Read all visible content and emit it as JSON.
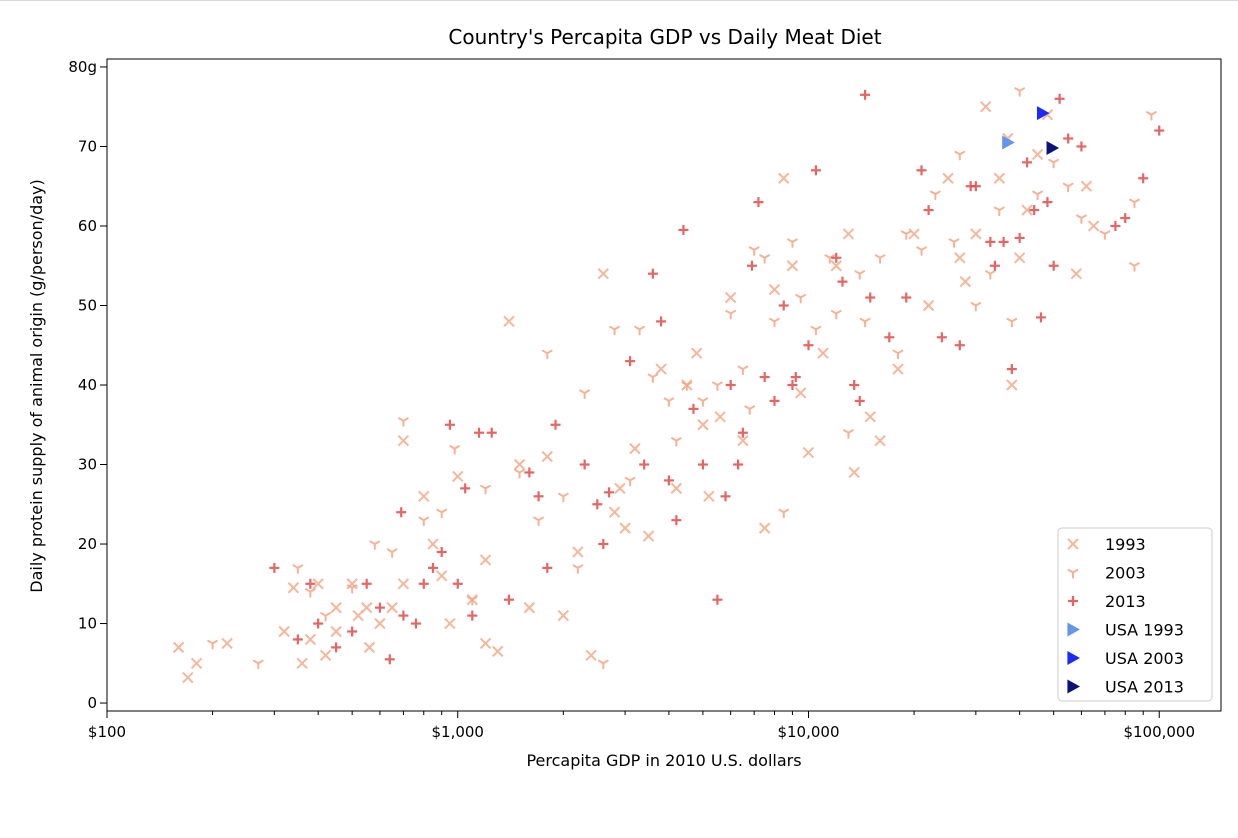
{
  "chart_data": {
    "type": "scatter",
    "title": "Country's Percapita GDP vs Daily Meat Diet",
    "xlabel": "Percapita GDP in 2010 U.S. dollars",
    "ylabel": "Daily protein supply of animal origin (g/person/day)",
    "xscale": "log",
    "xlim": [
      100,
      150000
    ],
    "ylim": [
      -1,
      81
    ],
    "xticks": [
      {
        "value": 100,
        "label": "$100"
      },
      {
        "value": 1000,
        "label": "$1,000"
      },
      {
        "value": 10000,
        "label": "$10,000"
      },
      {
        "value": 100000,
        "label": "$100,000"
      }
    ],
    "yticks": [
      {
        "value": 0,
        "label": "0"
      },
      {
        "value": 10,
        "label": "10"
      },
      {
        "value": 20,
        "label": "20"
      },
      {
        "value": 30,
        "label": "30"
      },
      {
        "value": 40,
        "label": "40"
      },
      {
        "value": 50,
        "label": "50"
      },
      {
        "value": 60,
        "label": "60"
      },
      {
        "value": 70,
        "label": "70"
      },
      {
        "value": 80,
        "label": "80g"
      }
    ],
    "grid": false,
    "legend_position": "bottom-right",
    "series": [
      {
        "name": "1993",
        "marker": "x",
        "color": "#f4a582",
        "points": [
          [
            160,
            7
          ],
          [
            170,
            3.2
          ],
          [
            180,
            5
          ],
          [
            220,
            7.5
          ],
          [
            320,
            9
          ],
          [
            340,
            14.5
          ],
          [
            360,
            5
          ],
          [
            380,
            8
          ],
          [
            400,
            15
          ],
          [
            420,
            6
          ],
          [
            450,
            12
          ],
          [
            500,
            15
          ],
          [
            520,
            11
          ],
          [
            560,
            7
          ],
          [
            600,
            10
          ],
          [
            650,
            12
          ],
          [
            700,
            33
          ],
          [
            800,
            26
          ],
          [
            850,
            20
          ],
          [
            900,
            16
          ],
          [
            950,
            10
          ],
          [
            1000,
            28.5
          ],
          [
            1100,
            13
          ],
          [
            1200,
            7.5
          ],
          [
            1300,
            6.5
          ],
          [
            1400,
            48
          ],
          [
            1500,
            30
          ],
          [
            1600,
            12
          ],
          [
            1800,
            31
          ],
          [
            2000,
            11
          ],
          [
            2200,
            19
          ],
          [
            2400,
            6
          ],
          [
            2600,
            54
          ],
          [
            2900,
            27
          ],
          [
            3200,
            32
          ],
          [
            3500,
            21
          ],
          [
            3800,
            42
          ],
          [
            4200,
            27
          ],
          [
            4500,
            40
          ],
          [
            4800,
            44
          ],
          [
            5000,
            35
          ],
          [
            5600,
            36
          ],
          [
            6000,
            51
          ],
          [
            6500,
            33
          ],
          [
            7500,
            22
          ],
          [
            8000,
            52
          ],
          [
            8500,
            66
          ],
          [
            9000,
            55
          ],
          [
            10000,
            31.5
          ],
          [
            11000,
            44
          ],
          [
            12000,
            55
          ],
          [
            13000,
            59
          ],
          [
            13500,
            29
          ],
          [
            15000,
            36
          ],
          [
            16000,
            33
          ],
          [
            20000,
            59
          ],
          [
            22000,
            50
          ],
          [
            25000,
            66
          ],
          [
            28000,
            53
          ],
          [
            30000,
            59
          ],
          [
            32000,
            75
          ],
          [
            35000,
            66
          ],
          [
            37000,
            71
          ],
          [
            38000,
            40
          ],
          [
            40000,
            56
          ],
          [
            42000,
            62
          ],
          [
            45000,
            69
          ],
          [
            48000,
            74
          ],
          [
            58000,
            54
          ],
          [
            62000,
            65
          ],
          [
            65000,
            60
          ],
          [
            450,
            9
          ],
          [
            550,
            12
          ],
          [
            700,
            15
          ],
          [
            1200,
            18
          ],
          [
            2800,
            24
          ],
          [
            3000,
            22
          ],
          [
            5200,
            26
          ],
          [
            9500,
            39
          ],
          [
            18000,
            42
          ],
          [
            27000,
            56
          ]
        ]
      },
      {
        "name": "2003",
        "marker": "tri_down",
        "color": "#f4a582",
        "points": [
          [
            200,
            7.5
          ],
          [
            270,
            5
          ],
          [
            350,
            17
          ],
          [
            380,
            14
          ],
          [
            420,
            11
          ],
          [
            500,
            14.5
          ],
          [
            580,
            20
          ],
          [
            650,
            19
          ],
          [
            700,
            35.5
          ],
          [
            800,
            23
          ],
          [
            900,
            24
          ],
          [
            980,
            32
          ],
          [
            1200,
            27
          ],
          [
            1500,
            29
          ],
          [
            1700,
            23
          ],
          [
            1800,
            44
          ],
          [
            2000,
            26
          ],
          [
            2300,
            39
          ],
          [
            2600,
            5
          ],
          [
            2800,
            47
          ],
          [
            3300,
            47
          ],
          [
            3600,
            41
          ],
          [
            4000,
            38
          ],
          [
            4500,
            40
          ],
          [
            5000,
            38
          ],
          [
            5500,
            40
          ],
          [
            6000,
            49
          ],
          [
            6500,
            42
          ],
          [
            7000,
            57
          ],
          [
            7500,
            56
          ],
          [
            8000,
            48
          ],
          [
            9000,
            58
          ],
          [
            9500,
            51
          ],
          [
            10500,
            47
          ],
          [
            11500,
            56
          ],
          [
            12000,
            49
          ],
          [
            13000,
            34
          ],
          [
            14000,
            54
          ],
          [
            16000,
            56
          ],
          [
            18000,
            44
          ],
          [
            19000,
            59
          ],
          [
            21000,
            57
          ],
          [
            23000,
            64
          ],
          [
            27000,
            69
          ],
          [
            30000,
            50
          ],
          [
            33000,
            54
          ],
          [
            35000,
            62
          ],
          [
            38000,
            48
          ],
          [
            40000,
            77
          ],
          [
            45000,
            64
          ],
          [
            50000,
            68
          ],
          [
            55000,
            65
          ],
          [
            60000,
            61
          ],
          [
            70000,
            59
          ],
          [
            85000,
            63
          ],
          [
            85000,
            55
          ],
          [
            95000,
            74
          ],
          [
            1100,
            13
          ],
          [
            2200,
            17
          ],
          [
            3100,
            28
          ],
          [
            4200,
            33
          ],
          [
            6800,
            37
          ],
          [
            8500,
            24
          ],
          [
            14500,
            48
          ],
          [
            26000,
            58
          ]
        ]
      },
      {
        "name": "2013",
        "marker": "plus",
        "color": "#e34a4a",
        "points": [
          [
            300,
            17
          ],
          [
            380,
            15
          ],
          [
            400,
            10
          ],
          [
            450,
            7
          ],
          [
            500,
            9
          ],
          [
            550,
            15
          ],
          [
            640,
            5.5
          ],
          [
            690,
            24
          ],
          [
            700,
            11
          ],
          [
            760,
            10
          ],
          [
            800,
            15
          ],
          [
            850,
            17
          ],
          [
            900,
            19
          ],
          [
            950,
            35
          ],
          [
            1000,
            15
          ],
          [
            1050,
            27
          ],
          [
            1150,
            34
          ],
          [
            1250,
            34
          ],
          [
            1400,
            13
          ],
          [
            1600,
            29
          ],
          [
            1700,
            26
          ],
          [
            1900,
            35
          ],
          [
            2300,
            30
          ],
          [
            2500,
            25
          ],
          [
            2700,
            26.5
          ],
          [
            3100,
            43
          ],
          [
            3400,
            30
          ],
          [
            3600,
            54
          ],
          [
            3800,
            48
          ],
          [
            4000,
            28
          ],
          [
            4400,
            59.5
          ],
          [
            4700,
            37
          ],
          [
            5000,
            30
          ],
          [
            5500,
            13
          ],
          [
            5800,
            26
          ],
          [
            6000,
            40
          ],
          [
            6300,
            30
          ],
          [
            6900,
            55
          ],
          [
            7200,
            63
          ],
          [
            7500,
            41
          ],
          [
            8000,
            38
          ],
          [
            8500,
            50
          ],
          [
            9000,
            40
          ],
          [
            10000,
            45
          ],
          [
            10500,
            67
          ],
          [
            12000,
            56
          ],
          [
            13500,
            40
          ],
          [
            14000,
            38
          ],
          [
            14500,
            76.5
          ],
          [
            15000,
            51
          ],
          [
            17000,
            46
          ],
          [
            19000,
            51
          ],
          [
            21000,
            67
          ],
          [
            22000,
            62
          ],
          [
            24000,
            46
          ],
          [
            27000,
            45
          ],
          [
            29000,
            65
          ],
          [
            33000,
            58
          ],
          [
            34000,
            55
          ],
          [
            36000,
            58
          ],
          [
            38000,
            42
          ],
          [
            40000,
            58.5
          ],
          [
            42000,
            68
          ],
          [
            44000,
            62
          ],
          [
            46000,
            48.5
          ],
          [
            48000,
            63
          ],
          [
            50000,
            55
          ],
          [
            52000,
            76
          ],
          [
            55000,
            71
          ],
          [
            60000,
            70
          ],
          [
            75000,
            60
          ],
          [
            80000,
            61
          ],
          [
            90000,
            66
          ],
          [
            100000,
            72
          ],
          [
            350,
            8
          ],
          [
            600,
            12
          ],
          [
            1100,
            11
          ],
          [
            1800,
            17
          ],
          [
            2600,
            20
          ],
          [
            4200,
            23
          ],
          [
            6500,
            34
          ],
          [
            9200,
            41
          ],
          [
            12500,
            53
          ],
          [
            30000,
            65
          ]
        ]
      },
      {
        "name": "USA 1993",
        "marker": "triangle-right",
        "color": "#6495ed",
        "points": [
          [
            37000,
            70.5
          ]
        ]
      },
      {
        "name": "USA 2003",
        "marker": "triangle-right",
        "color": "#1a2bff",
        "points": [
          [
            46500,
            74.2
          ]
        ]
      },
      {
        "name": "USA 2013",
        "marker": "triangle-right",
        "color": "#0b1378",
        "points": [
          [
            49500,
            69.8
          ]
        ]
      }
    ]
  }
}
